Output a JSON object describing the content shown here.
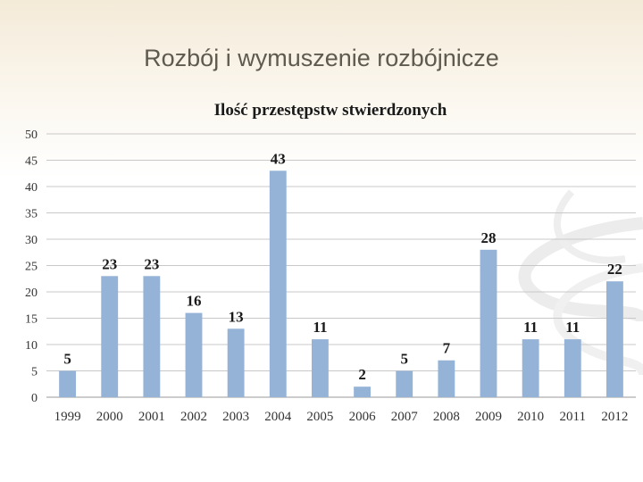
{
  "slide": {
    "title": "Rozbój i wymuszenie rozbójnicze"
  },
  "chart_data": {
    "type": "bar",
    "title": "Ilość przestępstw stwierdzonych",
    "categories": [
      "1999",
      "2000",
      "2001",
      "2002",
      "2003",
      "2004",
      "2005",
      "2006",
      "2007",
      "2008",
      "2009",
      "2010",
      "2011",
      "2012"
    ],
    "values": [
      5,
      23,
      23,
      16,
      13,
      43,
      11,
      2,
      5,
      7,
      28,
      11,
      11,
      22
    ],
    "ylim": [
      0,
      50
    ],
    "yticks": [
      0,
      5,
      10,
      15,
      20,
      25,
      30,
      35,
      40,
      45,
      50
    ],
    "xlabel": "",
    "ylabel": "",
    "grid": true,
    "legend": "none",
    "bar_color": "#95b3d7"
  }
}
